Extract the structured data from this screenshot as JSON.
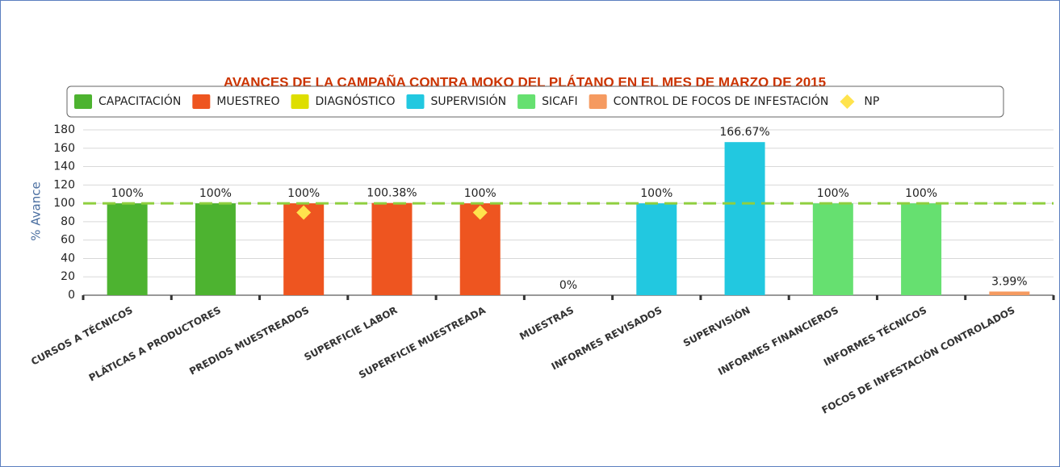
{
  "chart_data": {
    "type": "bar",
    "title": "AVANCES DE LA CAMPAÑA CONTRA MOKO DEL PLÁTANO EN EL MES DE MARZO DE 2015",
    "y_label": "% Avance",
    "categories": [
      "CURSOS A TÉCNICOS",
      "PLÁTICAS A PRODUCTORES",
      "PREDIOS MUESTREADOS",
      "SUPERFICIE LABOR",
      "SUPERFICIE MUESTREADA",
      "MUESTRAS",
      "INFORMES REVISADOS",
      "SUPERVISIÓN",
      "INFORMES FINANCIEROS",
      "INFORMES TÉCNICOS",
      "FOCOS DE INFESTACIÓN CONTROLADOS"
    ],
    "series": [
      {
        "name": "CAPACITACIÓN",
        "color": "#4db330",
        "values": [
          100,
          100,
          null,
          null,
          null,
          null,
          null,
          null,
          null,
          null,
          null
        ],
        "value_labels": [
          "100%",
          "100%",
          null,
          null,
          null,
          null,
          null,
          null,
          null,
          null,
          null
        ]
      },
      {
        "name": "MUESTREO",
        "color": "#ee5520",
        "values": [
          null,
          null,
          100,
          100.38,
          100,
          null,
          null,
          null,
          null,
          null,
          null
        ],
        "value_labels": [
          null,
          null,
          "100%",
          "100.38%",
          "100%",
          null,
          null,
          null,
          null,
          null,
          null
        ]
      },
      {
        "name": "DIAGNÓSTICO",
        "color": "#dede00",
        "values": [
          null,
          null,
          null,
          null,
          null,
          0,
          null,
          null,
          null,
          null,
          null
        ],
        "value_labels": [
          null,
          null,
          null,
          null,
          null,
          "0%",
          null,
          null,
          null,
          null,
          null
        ]
      },
      {
        "name": "SUPERVISIÓN",
        "color": "#22c8e0",
        "values": [
          null,
          null,
          null,
          null,
          null,
          null,
          100,
          166.67,
          null,
          null,
          null
        ],
        "value_labels": [
          null,
          null,
          null,
          null,
          null,
          null,
          "100%",
          "166.67%",
          null,
          null,
          null
        ]
      },
      {
        "name": "SICAFI",
        "color": "#66e070",
        "values": [
          null,
          null,
          null,
          null,
          null,
          null,
          null,
          null,
          100,
          100,
          null
        ],
        "value_labels": [
          null,
          null,
          null,
          null,
          null,
          null,
          null,
          null,
          "100%",
          "100%",
          null
        ]
      },
      {
        "name": "CONTROL DE FOCOS DE INFESTACIÓN",
        "color": "#f59a60",
        "values": [
          null,
          null,
          null,
          null,
          null,
          null,
          null,
          null,
          null,
          null,
          3.99
        ],
        "value_labels": [
          null,
          null,
          null,
          null,
          null,
          null,
          null,
          null,
          null,
          null,
          "3.99%"
        ]
      },
      {
        "name": "NP",
        "color": "#ffe34d",
        "marker": "diamond",
        "values": [
          null,
          null,
          90,
          null,
          90,
          null,
          null,
          null,
          null,
          null,
          null
        ]
      }
    ],
    "reference_line": {
      "value": 100,
      "color": "#8fcf3f"
    },
    "ylim": [
      0,
      180
    ],
    "yticks": [
      0,
      20,
      40,
      60,
      80,
      100,
      120,
      140,
      160,
      180
    ],
    "grid": true
  }
}
